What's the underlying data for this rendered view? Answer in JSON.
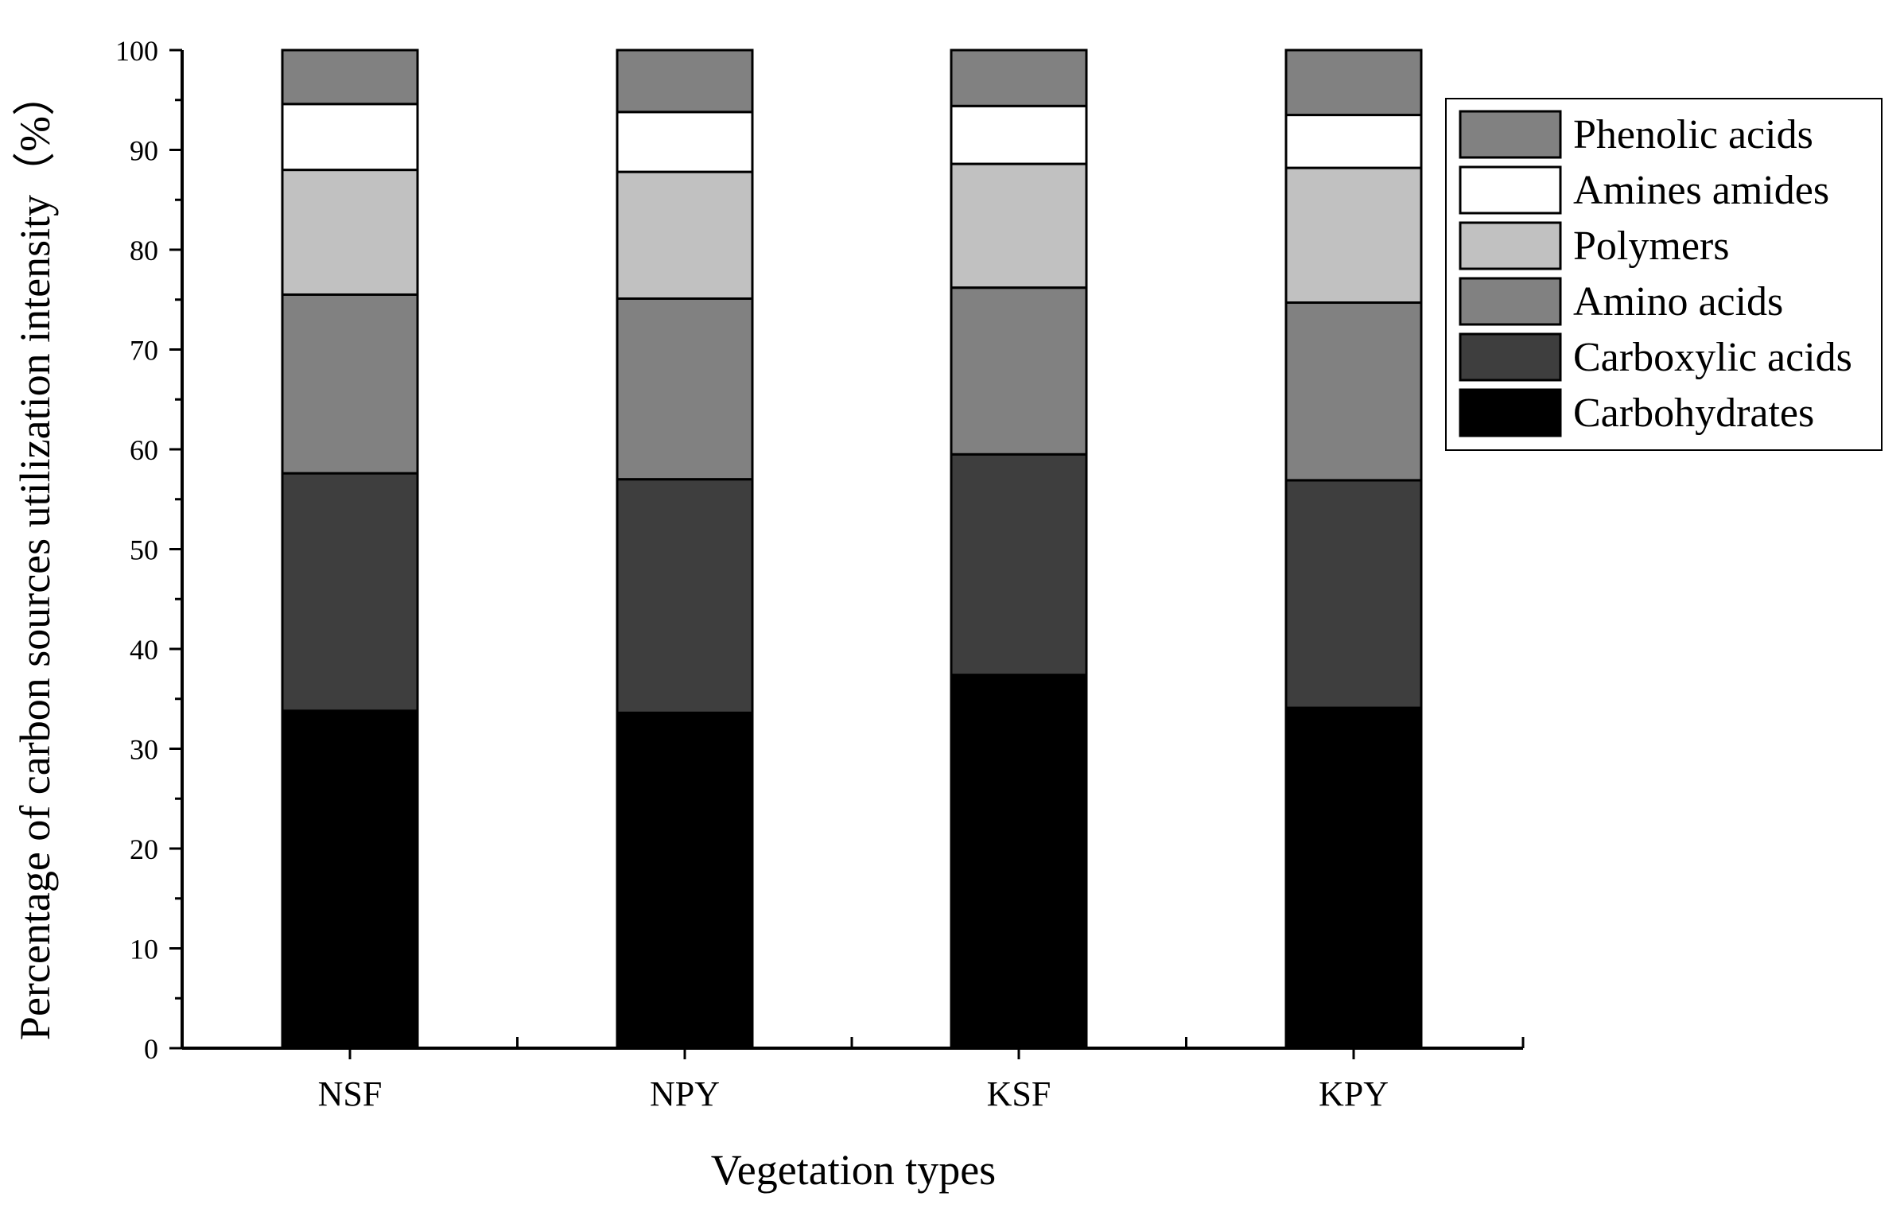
{
  "chart_data": {
    "type": "bar",
    "stacked": true,
    "title": "",
    "xlabel": "Vegetation types",
    "ylabel": "Percentage of carbon sources utilization intensity（%）",
    "ylim": [
      0,
      100
    ],
    "yticks": [
      0,
      10,
      20,
      30,
      40,
      50,
      60,
      70,
      80,
      90,
      100
    ],
    "grid": false,
    "legend_position": "top-right",
    "categories": [
      "NSF",
      "NPY",
      "KSF",
      "KPY"
    ],
    "series": [
      {
        "name": "Carbohydrates",
        "color": "#000000",
        "values": [
          33.8,
          33.6,
          37.4,
          34.1
        ]
      },
      {
        "name": "Carboxylic acids",
        "color": "#3e3e3e",
        "values": [
          23.8,
          23.4,
          22.1,
          22.8
        ]
      },
      {
        "name": "Amino acids",
        "color": "#818181",
        "values": [
          17.9,
          18.1,
          16.7,
          17.8
        ]
      },
      {
        "name": "Polymers",
        "color": "#c1c1c1",
        "values": [
          12.5,
          12.7,
          12.4,
          13.5
        ]
      },
      {
        "name": "Amines amides",
        "color": "#ffffff",
        "values": [
          6.6,
          6.0,
          5.8,
          5.3
        ]
      },
      {
        "name": "Phenolic acids",
        "color": "#818181",
        "values": [
          5.4,
          6.2,
          5.6,
          6.5
        ]
      }
    ]
  }
}
